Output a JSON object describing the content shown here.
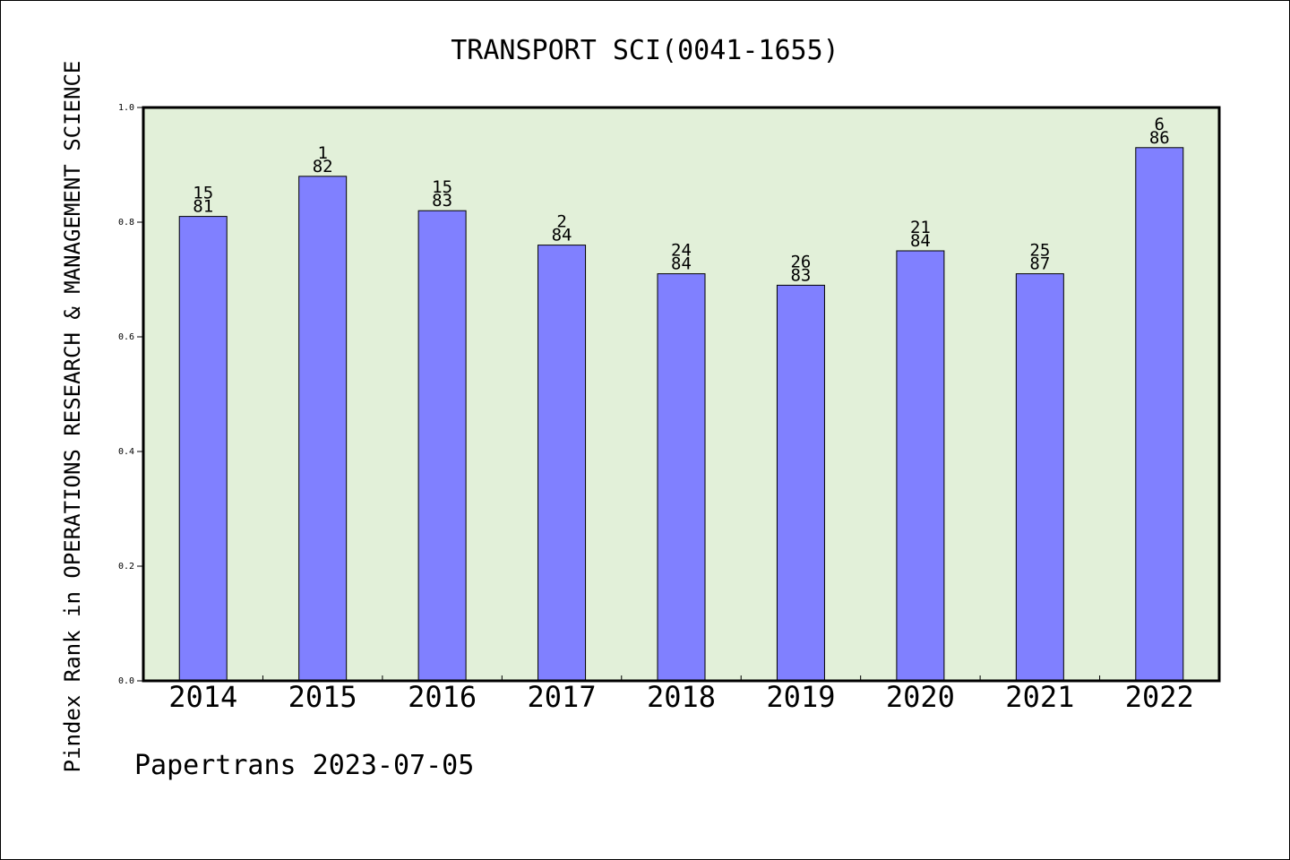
{
  "chart_data": {
    "type": "bar",
    "title": "TRANSPORT SCI(0041-1655)",
    "ylabel": "Pindex Rank in OPERATIONS RESEARCH & MANAGEMENT SCIENCE",
    "xlabel": "",
    "footer": "Papertrans 2023-07-05",
    "categories": [
      "2014",
      "2015",
      "2016",
      "2017",
      "2018",
      "2019",
      "2020",
      "2021",
      "2022"
    ],
    "values": [
      0.81,
      0.88,
      0.82,
      0.76,
      0.71,
      0.69,
      0.75,
      0.71,
      0.93
    ],
    "rank_labels": [
      "15",
      "1",
      "15",
      "2",
      "24",
      "26",
      "21",
      "25",
      "6"
    ],
    "total_labels": [
      "81",
      "82",
      "83",
      "84",
      "84",
      "83",
      "84",
      "87",
      "86"
    ],
    "ylim": [
      0,
      1
    ],
    "yticks": [
      "0.0",
      "0.2",
      "0.4",
      "0.6",
      "0.8",
      "1.0"
    ],
    "grid": false,
    "colors": {
      "bar": "#8080ff",
      "plot_background": "#e2f0d9",
      "frame": "#000000"
    }
  }
}
